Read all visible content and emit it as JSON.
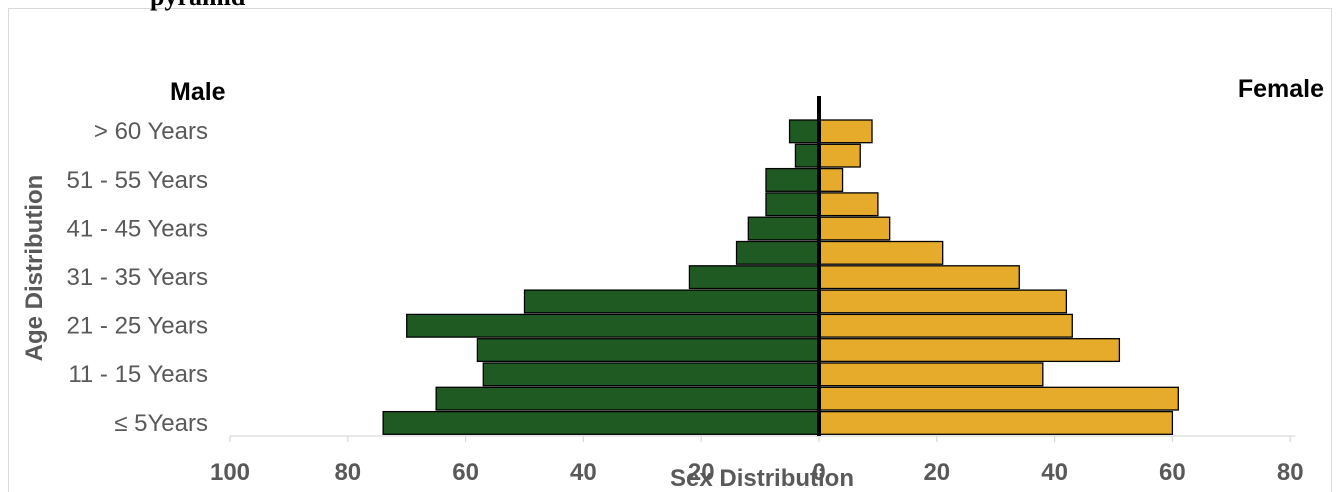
{
  "chart_data": {
    "type": "bar",
    "orientation": "horizontal-population-pyramid",
    "header_fragment": "pyramid",
    "left_label": "Male",
    "right_label": "Female",
    "ylabel": "Age Distribution",
    "xlabel": "Sex Distribution",
    "x_ticks": [
      "100",
      "80",
      "60",
      "40",
      "20",
      "0",
      "20",
      "40",
      "60",
      "80"
    ],
    "xlim": [
      -100,
      80
    ],
    "category_labels": [
      {
        "text": "> 60 Years",
        "row": 0.5
      },
      {
        "text": "51 - 55 Years",
        "row": 2.5
      },
      {
        "text": "41 - 45 Years",
        "row": 4.5
      },
      {
        "text": "31 - 35 Years",
        "row": 6.5
      },
      {
        "text": "21 - 25 Years",
        "row": 8.5
      },
      {
        "text": "11 - 15 Years",
        "row": 10.5
      },
      {
        "text": "≤ 5Years",
        "row": 12.5
      }
    ],
    "series": [
      {
        "name": "Male",
        "color": "#1e5a22",
        "values": [
          5,
          4,
          9,
          9,
          12,
          14,
          22,
          50,
          70,
          58,
          57,
          65,
          74
        ]
      },
      {
        "name": "Female",
        "color": "#e6ab2a",
        "values": [
          9,
          7,
          4,
          10,
          12,
          21,
          34,
          42,
          43,
          51,
          38,
          61,
          60
        ]
      }
    ],
    "grid": false
  }
}
